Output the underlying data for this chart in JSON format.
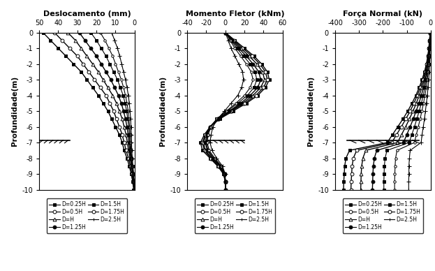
{
  "title1": "Deslocamento (mm)",
  "title2": "Momento Fletor (kNm)",
  "title3": "Força Normal (kN)",
  "ylabel": "Profundidade(m)",
  "depth": [
    0,
    -0.5,
    -1,
    -1.5,
    -2,
    -2.5,
    -3,
    -3.5,
    -4,
    -4.5,
    -5,
    -5.5,
    -6,
    -6.5,
    -7,
    -7.5,
    -8,
    -8.5,
    -9,
    -9.5,
    -10
  ],
  "xlim1": [
    50,
    0
  ],
  "xlim2": [
    -40,
    60
  ],
  "xlim3": [
    -400,
    0
  ],
  "ylim": [
    -10,
    0
  ],
  "xticks1": [
    50,
    40,
    30,
    20,
    10,
    0
  ],
  "xticks2": [
    -40,
    -20,
    0,
    20,
    40,
    60
  ],
  "xticks3": [
    -400,
    -300,
    -200,
    -100,
    0
  ],
  "ground_level": -6.85,
  "legend_labels": [
    "D=0.25H",
    "D=0.5H",
    "D=H",
    "D=1.25H",
    "D=1.5H",
    "D=1.75H",
    "D=2.5H"
  ],
  "markers": [
    "s",
    "o",
    "^",
    "o",
    "s",
    "o",
    "+"
  ],
  "marker_fills": [
    "full",
    "none",
    "none",
    "full",
    "full",
    "none",
    "none"
  ],
  "disp_curves": [
    [
      48,
      44,
      40,
      36,
      32,
      28,
      25,
      22,
      19,
      16.5,
      14,
      12,
      10,
      8,
      6.5,
      5.5,
      4.0,
      2.8,
      1.8,
      1.0,
      0.5
    ],
    [
      42,
      38,
      34,
      30,
      27,
      24,
      21,
      18,
      15,
      13,
      11,
      9.5,
      8,
      6.5,
      5.5,
      4.5,
      3.2,
      2.2,
      1.4,
      0.7,
      0.3
    ],
    [
      35,
      31,
      28,
      25,
      22,
      19,
      16.5,
      14,
      11.5,
      9.5,
      8,
      6.5,
      5.5,
      4.5,
      3.8,
      3.2,
      2.4,
      1.7,
      1.0,
      0.5,
      0.2
    ],
    [
      29,
      26,
      23,
      20,
      17.5,
      15,
      12.5,
      10.5,
      8.5,
      7,
      5.8,
      4.8,
      4.0,
      3.4,
      3.0,
      2.6,
      2.0,
      1.4,
      0.8,
      0.4,
      0.1
    ],
    [
      23,
      20,
      17.5,
      15,
      13,
      11,
      9,
      7.5,
      6,
      5,
      4.2,
      3.6,
      3.1,
      2.7,
      2.5,
      2.2,
      1.7,
      1.2,
      0.7,
      0.3,
      0.1
    ],
    [
      18,
      15.5,
      13.5,
      11.5,
      10,
      8.5,
      7,
      5.8,
      4.8,
      4.0,
      3.4,
      3.0,
      2.6,
      2.3,
      2.1,
      1.9,
      1.5,
      1.1,
      0.6,
      0.3,
      0.1
    ],
    [
      12,
      10.5,
      9,
      7.8,
      6.8,
      5.8,
      4.8,
      4.0,
      3.3,
      2.8,
      2.4,
      2.1,
      1.9,
      1.7,
      1.6,
      1.5,
      1.2,
      0.9,
      0.5,
      0.2,
      0.05
    ]
  ],
  "moment_curves": [
    [
      0,
      10,
      20,
      30,
      38,
      44,
      46,
      42,
      34,
      22,
      8,
      -6,
      -16,
      -22,
      -26,
      -24,
      -16,
      -8,
      -2,
      0,
      0
    ],
    [
      0,
      9,
      18,
      28,
      36,
      42,
      44,
      40,
      32,
      20,
      6,
      -7,
      -16,
      -21,
      -24,
      -22,
      -15,
      -7,
      -1.5,
      0,
      0
    ],
    [
      0,
      8,
      16,
      25,
      33,
      39,
      41,
      37,
      29,
      18,
      5,
      -8,
      -16,
      -20,
      -23,
      -21,
      -14,
      -6,
      -1,
      0,
      0
    ],
    [
      0,
      7,
      14,
      22,
      29,
      35,
      37,
      34,
      26,
      16,
      4,
      -8,
      -16,
      -19,
      -21,
      -19,
      -13,
      -5,
      -0.8,
      0,
      0
    ],
    [
      0,
      6,
      12,
      19,
      26,
      31,
      33,
      30,
      23,
      13,
      2,
      -9,
      -16,
      -19,
      -20,
      -18,
      -12,
      -5,
      -0.5,
      0,
      0
    ],
    [
      0,
      5,
      10,
      16,
      22,
      27,
      29,
      26,
      20,
      11,
      1,
      -9,
      -15,
      -18,
      -19,
      -17,
      -11,
      -4,
      -0.3,
      0,
      0
    ],
    [
      0,
      3,
      6,
      10,
      14,
      18,
      19,
      17,
      13,
      6,
      -1,
      -8,
      -13,
      -15,
      -16,
      -14,
      -9,
      -3,
      -0.1,
      0,
      0
    ]
  ],
  "normal_curves": [
    [
      -2,
      -5,
      -8,
      -12,
      -18,
      -26,
      -36,
      -48,
      -62,
      -78,
      -96,
      -116,
      -138,
      -160,
      -182,
      -340,
      -355,
      -360,
      -362,
      -364,
      -365
    ],
    [
      -2,
      -4,
      -7,
      -11,
      -16,
      -23,
      -32,
      -43,
      -56,
      -70,
      -86,
      -104,
      -123,
      -143,
      -163,
      -310,
      -324,
      -329,
      -331,
      -333,
      -334
    ],
    [
      -2,
      -4,
      -6,
      -9,
      -14,
      -20,
      -27,
      -37,
      -48,
      -60,
      -74,
      -89,
      -105,
      -122,
      -139,
      -272,
      -284,
      -289,
      -291,
      -292,
      -293
    ],
    [
      -1,
      -3,
      -5,
      -8,
      -11,
      -16,
      -23,
      -30,
      -39,
      -49,
      -61,
      -73,
      -86,
      -100,
      -114,
      -226,
      -236,
      -240,
      -242,
      -243,
      -244
    ],
    [
      -1,
      -2,
      -4,
      -6,
      -9,
      -13,
      -18,
      -24,
      -31,
      -39,
      -48,
      -58,
      -68,
      -79,
      -90,
      -183,
      -191,
      -194,
      -195,
      -196,
      -196
    ],
    [
      -1,
      -2,
      -3,
      -5,
      -7,
      -10,
      -14,
      -18,
      -24,
      -30,
      -37,
      -44,
      -52,
      -60,
      -68,
      -141,
      -147,
      -149,
      -150,
      -151,
      -151
    ],
    [
      -0.5,
      -1,
      -2,
      -3,
      -4,
      -6,
      -8,
      -11,
      -14,
      -18,
      -22,
      -26,
      -31,
      -36,
      -40,
      -86,
      -89,
      -91,
      -91,
      -92,
      -92
    ]
  ]
}
